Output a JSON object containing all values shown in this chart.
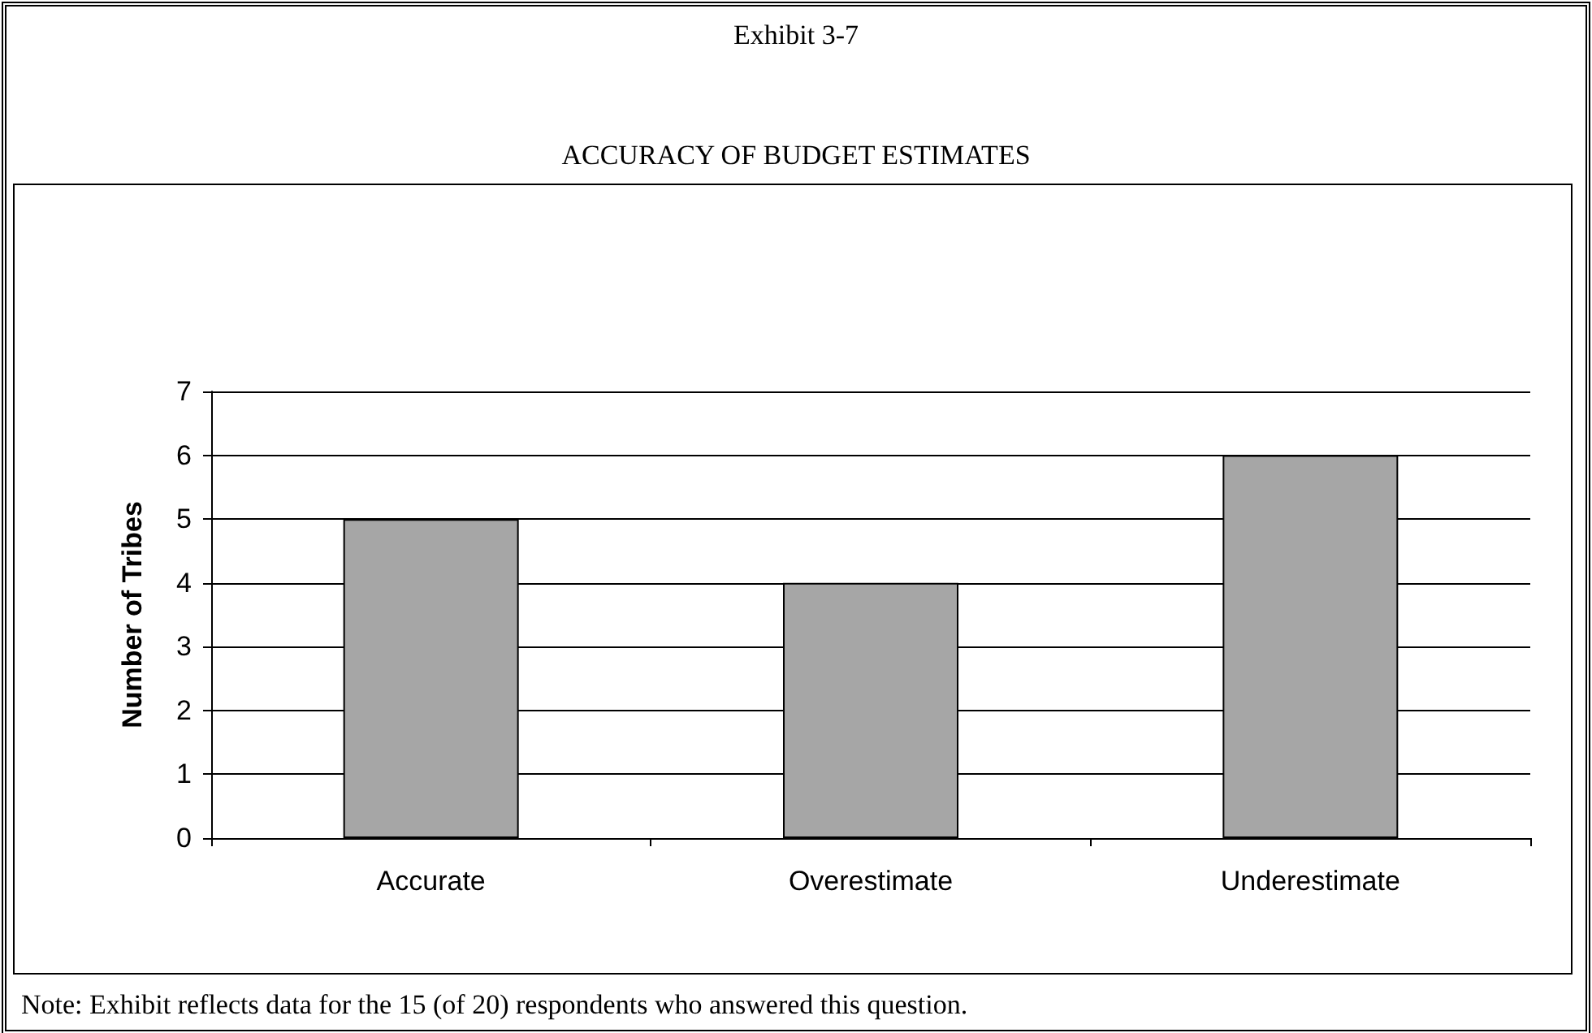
{
  "chart_data": {
    "type": "bar",
    "title": "Exhibit 3-7",
    "subtitle": "ACCURACY OF BUDGET ESTIMATES",
    "ylabel": "Number of Tribes",
    "categories": [
      "Accurate",
      "Overestimate",
      "Underestimate"
    ],
    "values": [
      5,
      4,
      6
    ],
    "color": "#a6a6a6",
    "ylim": [
      0,
      7
    ],
    "yticks": [
      0,
      1,
      2,
      3,
      4,
      5,
      6,
      7
    ],
    "grid": "y",
    "annotations": [
      "Note: Exhibit reflects data for the 15 (of 20) respondents who answered this question."
    ]
  }
}
